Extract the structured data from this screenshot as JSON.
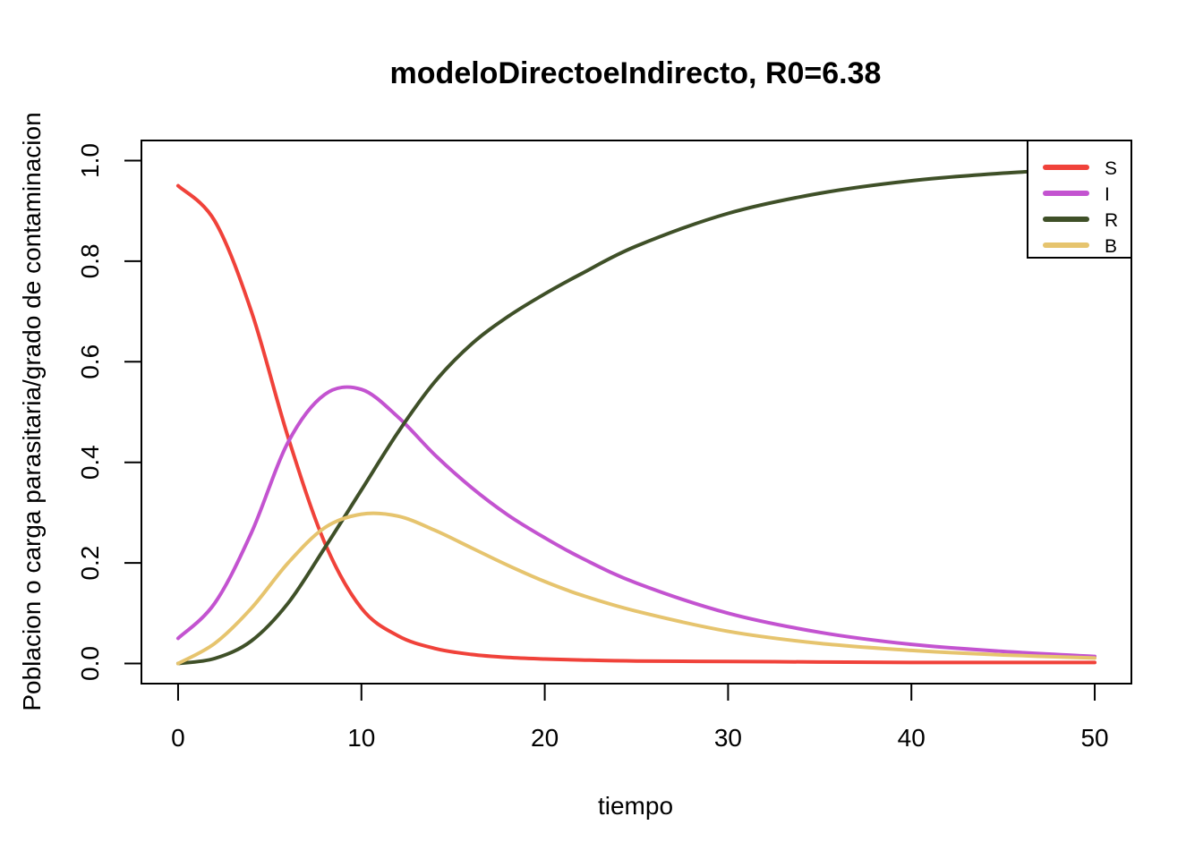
{
  "chart_data": {
    "type": "line",
    "title": "modeloDirectoeIndirecto, R0=6.38",
    "xlabel": "tiempo",
    "ylabel": "Poblacion o carga parasitaria/grado de contaminacion",
    "xlim": [
      -2,
      52
    ],
    "ylim": [
      -0.04,
      1.04
    ],
    "xticks": [
      0,
      10,
      20,
      30,
      40,
      50
    ],
    "yticks": [
      "0.0",
      "0.2",
      "0.4",
      "0.6",
      "0.8",
      "1.0"
    ],
    "grid": false,
    "legend_position": "top-right",
    "x": [
      0,
      2,
      4,
      6,
      8,
      10,
      12,
      14,
      16,
      18,
      20,
      22,
      25,
      30,
      35,
      40,
      45,
      50
    ],
    "series": [
      {
        "name": "S",
        "color": "#F0423A",
        "values": [
          0.95,
          0.88,
          0.7,
          0.45,
          0.24,
          0.11,
          0.055,
          0.03,
          0.018,
          0.012,
          0.009,
          0.007,
          0.005,
          0.004,
          0.003,
          0.002,
          0.002,
          0.002
        ]
      },
      {
        "name": "I",
        "color": "#C353D0",
        "values": [
          0.05,
          0.12,
          0.26,
          0.44,
          0.535,
          0.545,
          0.49,
          0.415,
          0.35,
          0.295,
          0.25,
          0.21,
          0.16,
          0.1,
          0.062,
          0.038,
          0.024,
          0.014
        ]
      },
      {
        "name": "R",
        "color": "#3F5028",
        "values": [
          0.0,
          0.01,
          0.045,
          0.12,
          0.23,
          0.345,
          0.46,
          0.56,
          0.635,
          0.69,
          0.735,
          0.775,
          0.83,
          0.895,
          0.935,
          0.96,
          0.975,
          0.985
        ]
      },
      {
        "name": "B",
        "color": "#E6C46E",
        "values": [
          0.0,
          0.04,
          0.11,
          0.2,
          0.27,
          0.297,
          0.293,
          0.265,
          0.23,
          0.195,
          0.163,
          0.136,
          0.104,
          0.064,
          0.04,
          0.026,
          0.017,
          0.011
        ]
      }
    ]
  }
}
